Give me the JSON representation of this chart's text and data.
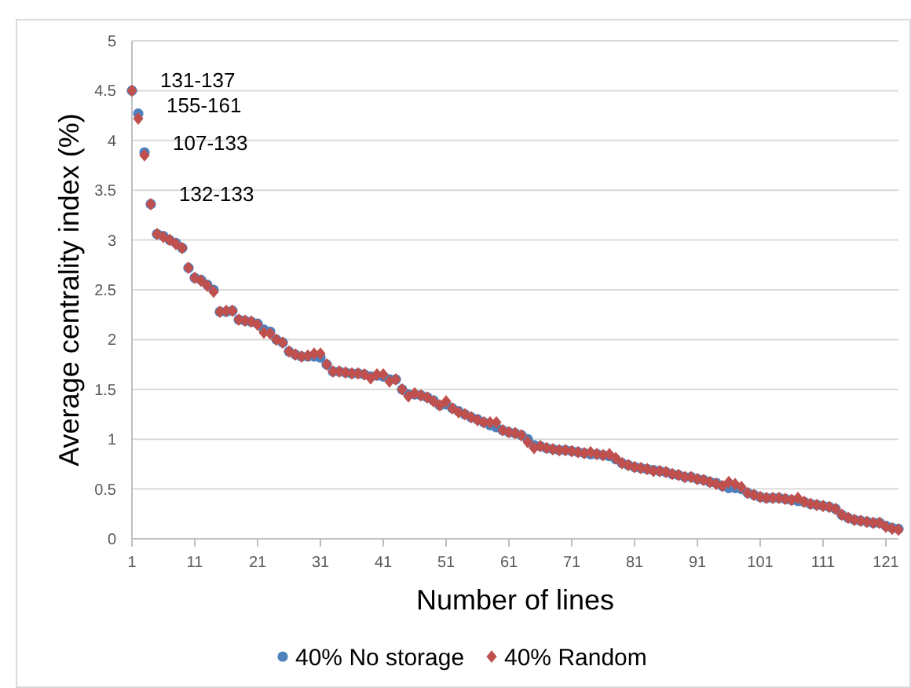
{
  "chart_data": {
    "type": "scatter",
    "xlabel": "Number  of lines",
    "ylabel": "Average centrality index (%)",
    "x": [
      1,
      2,
      3,
      4,
      5,
      6,
      7,
      8,
      9,
      10,
      11,
      12,
      13,
      14,
      15,
      16,
      17,
      18,
      19,
      20,
      21,
      22,
      23,
      24,
      25,
      26,
      27,
      28,
      29,
      30,
      31,
      32,
      33,
      34,
      35,
      36,
      37,
      38,
      39,
      40,
      41,
      42,
      43,
      44,
      45,
      46,
      47,
      48,
      49,
      50,
      51,
      52,
      53,
      54,
      55,
      56,
      57,
      58,
      59,
      60,
      61,
      62,
      63,
      64,
      65,
      66,
      67,
      68,
      69,
      70,
      71,
      72,
      73,
      74,
      75,
      76,
      77,
      78,
      79,
      80,
      81,
      82,
      83,
      84,
      85,
      86,
      87,
      88,
      89,
      90,
      91,
      92,
      93,
      94,
      95,
      96,
      97,
      98,
      99,
      100,
      101,
      102,
      103,
      104,
      105,
      106,
      107,
      108,
      109,
      110,
      111,
      112,
      113,
      114,
      115,
      116,
      117,
      118,
      119,
      120,
      121,
      122,
      123
    ],
    "xlim": [
      1,
      123
    ],
    "xticks": [
      1,
      11,
      21,
      31,
      41,
      51,
      61,
      71,
      81,
      91,
      101,
      111,
      121
    ],
    "ylim": [
      0,
      5
    ],
    "yticks": [
      0,
      0.5,
      1,
      1.5,
      2,
      2.5,
      3,
      3.5,
      4,
      4.5,
      5
    ],
    "grid": "y",
    "legend": "bottom",
    "series": [
      {
        "name": "40% No storage",
        "color": "#4f81bd",
        "marker": "circle",
        "values": [
          4.5,
          4.27,
          3.88,
          3.36,
          3.06,
          3.04,
          3.0,
          2.97,
          2.92,
          2.72,
          2.62,
          2.6,
          2.55,
          2.5,
          2.28,
          2.28,
          2.29,
          2.2,
          2.19,
          2.18,
          2.16,
          2.1,
          2.08,
          2.0,
          1.97,
          1.88,
          1.85,
          1.83,
          1.83,
          1.83,
          1.82,
          1.75,
          1.68,
          1.68,
          1.67,
          1.66,
          1.66,
          1.65,
          1.63,
          1.64,
          1.63,
          1.6,
          1.6,
          1.5,
          1.45,
          1.45,
          1.44,
          1.42,
          1.39,
          1.34,
          1.35,
          1.31,
          1.28,
          1.25,
          1.22,
          1.2,
          1.17,
          1.14,
          1.12,
          1.09,
          1.07,
          1.06,
          1.04,
          1.0,
          0.94,
          0.93,
          0.91,
          0.9,
          0.89,
          0.89,
          0.88,
          0.87,
          0.86,
          0.85,
          0.85,
          0.84,
          0.83,
          0.8,
          0.76,
          0.74,
          0.72,
          0.71,
          0.7,
          0.69,
          0.68,
          0.67,
          0.65,
          0.64,
          0.62,
          0.62,
          0.6,
          0.59,
          0.57,
          0.56,
          0.53,
          0.51,
          0.51,
          0.5,
          0.46,
          0.44,
          0.42,
          0.41,
          0.41,
          0.41,
          0.4,
          0.39,
          0.38,
          0.37,
          0.35,
          0.34,
          0.33,
          0.32,
          0.3,
          0.24,
          0.21,
          0.19,
          0.18,
          0.17,
          0.16,
          0.16,
          0.13,
          0.11,
          0.1
        ]
      },
      {
        "name": "40% Random",
        "color": "#c0504d",
        "marker": "diamond",
        "values": [
          4.5,
          4.22,
          3.85,
          3.36,
          3.06,
          3.03,
          3.0,
          2.96,
          2.92,
          2.72,
          2.62,
          2.59,
          2.54,
          2.48,
          2.28,
          2.29,
          2.29,
          2.2,
          2.19,
          2.18,
          2.15,
          2.07,
          2.06,
          2.0,
          1.97,
          1.88,
          1.85,
          1.83,
          1.84,
          1.86,
          1.86,
          1.75,
          1.68,
          1.68,
          1.67,
          1.66,
          1.66,
          1.65,
          1.61,
          1.65,
          1.65,
          1.58,
          1.6,
          1.5,
          1.43,
          1.46,
          1.44,
          1.42,
          1.38,
          1.34,
          1.38,
          1.31,
          1.27,
          1.25,
          1.22,
          1.19,
          1.17,
          1.17,
          1.17,
          1.09,
          1.07,
          1.06,
          1.04,
          0.97,
          0.91,
          0.93,
          0.91,
          0.9,
          0.89,
          0.89,
          0.88,
          0.87,
          0.86,
          0.87,
          0.85,
          0.84,
          0.85,
          0.81,
          0.76,
          0.74,
          0.72,
          0.71,
          0.7,
          0.68,
          0.68,
          0.67,
          0.65,
          0.64,
          0.62,
          0.62,
          0.6,
          0.59,
          0.57,
          0.55,
          0.53,
          0.57,
          0.55,
          0.52,
          0.46,
          0.44,
          0.42,
          0.41,
          0.41,
          0.41,
          0.4,
          0.39,
          0.41,
          0.37,
          0.35,
          0.34,
          0.33,
          0.32,
          0.3,
          0.24,
          0.21,
          0.19,
          0.18,
          0.17,
          0.16,
          0.16,
          0.12,
          0.1,
          0.09
        ]
      }
    ],
    "annotations": [
      {
        "text": "131-137",
        "x": 1,
        "y": 4.5
      },
      {
        "text": "155-161",
        "x": 2,
        "y": 4.25
      },
      {
        "text": "107-133",
        "x": 3,
        "y": 3.87
      },
      {
        "text": "132-133",
        "x": 4,
        "y": 3.36
      }
    ]
  }
}
